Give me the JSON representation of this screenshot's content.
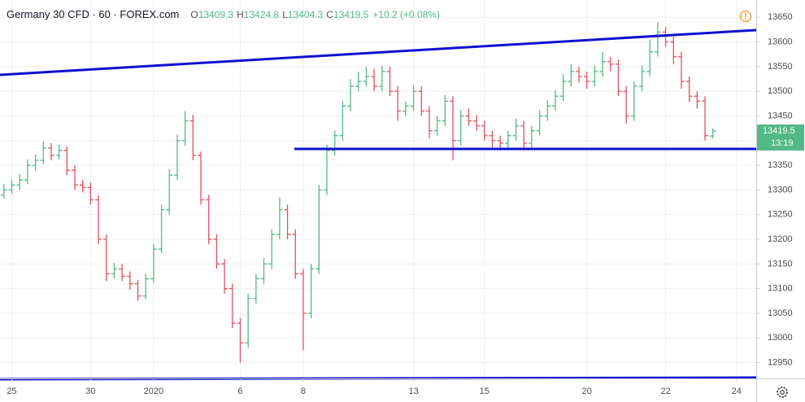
{
  "chart_data": {
    "type": "ohlc",
    "title": "Germany 30 CFD · 60 · FOREX.com",
    "header_labels": [
      "O",
      "H",
      "L",
      "C"
    ],
    "header_values": [
      "13409.3",
      "13424.8",
      "13404.3",
      "13419.5",
      "+10.2 (+0.08%)"
    ],
    "categories": [
      null,
      "25",
      null,
      null,
      null,
      null,
      null,
      null,
      null,
      null,
      null,
      "30",
      null,
      null,
      null,
      null,
      null,
      null,
      null,
      "2020",
      null,
      null,
      null,
      null,
      null,
      null,
      null,
      null,
      null,
      null,
      "6",
      null,
      null,
      null,
      null,
      null,
      null,
      null,
      "8",
      null,
      null,
      null,
      null,
      null,
      null,
      null,
      null,
      null,
      null,
      null,
      null,
      null,
      "13",
      null,
      null,
      null,
      null,
      null,
      null,
      null,
      null,
      "15",
      null,
      null,
      null,
      null,
      null,
      null,
      null,
      null,
      null,
      null,
      null,
      null,
      "20",
      null,
      null,
      null,
      null,
      null,
      null,
      null,
      null,
      null,
      "22",
      null,
      null,
      null,
      null,
      null,
      null,
      null,
      null,
      "24",
      null,
      null
    ],
    "open": [
      13290,
      13300,
      13310,
      13320,
      13350,
      13360,
      13385,
      13370,
      13380,
      13340,
      13310,
      13305,
      13280,
      13200,
      13130,
      13140,
      13125,
      13110,
      13085,
      13120,
      13180,
      13260,
      13330,
      13400,
      13440,
      13370,
      13280,
      13200,
      13150,
      13100,
      13030,
      12990,
      13080,
      13120,
      13150,
      13210,
      13260,
      13210,
      13130,
      13050,
      13140,
      13300,
      13380,
      13410,
      13470,
      13510,
      13520,
      13530,
      13510,
      13540,
      13500,
      13460,
      13470,
      13500,
      13460,
      13420,
      13440,
      13480,
      13400,
      13450,
      13440,
      13430,
      13410,
      13400,
      13395,
      13410,
      13430,
      13395,
      13420,
      13450,
      13470,
      13490,
      13520,
      13540,
      13530,
      13520,
      13540,
      13560,
      13555,
      13500,
      13450,
      13510,
      13540,
      13580,
      13620,
      13600,
      13570,
      13520,
      13490,
      13480,
      13409.3,
      null,
      null,
      null,
      null,
      null
    ],
    "high": [
      13312,
      13320,
      13332,
      13362,
      13372,
      13398,
      13395,
      13392,
      13388,
      13350,
      13320,
      13315,
      13290,
      13210,
      13152,
      13150,
      13135,
      13118,
      13130,
      13190,
      13270,
      13342,
      13412,
      13460,
      13452,
      13378,
      13290,
      13210,
      13160,
      13110,
      13040,
      13090,
      13130,
      13162,
      13220,
      13285,
      13270,
      13220,
      13140,
      13150,
      13310,
      13392,
      13420,
      13480,
      13525,
      13540,
      13550,
      13545,
      13552,
      13550,
      13510,
      13480,
      13512,
      13510,
      13470,
      13450,
      13492,
      13490,
      13462,
      13465,
      13452,
      13440,
      13420,
      13410,
      13420,
      13445,
      13440,
      13430,
      13462,
      13482,
      13502,
      13535,
      13555,
      13550,
      13540,
      13552,
      13580,
      13570,
      13565,
      13510,
      13520,
      13552,
      13605,
      13640,
      13630,
      13610,
      13580,
      13530,
      13500,
      13490,
      13424.8,
      null,
      null,
      null,
      null,
      null
    ],
    "low": [
      13282,
      13292,
      13300,
      13312,
      13340,
      13352,
      13360,
      13362,
      13330,
      13300,
      13295,
      13270,
      13190,
      13115,
      13120,
      13115,
      13098,
      13075,
      13078,
      13112,
      13172,
      13250,
      13320,
      13390,
      13360,
      13270,
      13190,
      13140,
      13090,
      13020,
      12950,
      12980,
      13070,
      13110,
      13140,
      13200,
      13200,
      13120,
      12975,
      13040,
      13130,
      13290,
      13370,
      13400,
      13460,
      13500,
      13510,
      13500,
      13500,
      13490,
      13440,
      13450,
      13460,
      13450,
      13405,
      13410,
      13430,
      13360,
      13390,
      13430,
      13420,
      13400,
      13385,
      13380,
      13385,
      13400,
      13380,
      13385,
      13410,
      13440,
      13460,
      13480,
      13510,
      13518,
      13505,
      13510,
      13530,
      13540,
      13490,
      13435,
      13440,
      13500,
      13530,
      13570,
      13590,
      13555,
      13505,
      13478,
      13465,
      13400,
      13404.3,
      null,
      null,
      null,
      null,
      null
    ],
    "close": [
      13300,
      13310,
      13320,
      13350,
      13360,
      13385,
      13370,
      13380,
      13340,
      13310,
      13305,
      13280,
      13200,
      13130,
      13140,
      13125,
      13110,
      13085,
      13120,
      13180,
      13260,
      13330,
      13400,
      13440,
      13370,
      13280,
      13200,
      13150,
      13100,
      13030,
      12990,
      13080,
      13120,
      13150,
      13210,
      13260,
      13210,
      13130,
      13050,
      13140,
      13300,
      13380,
      13410,
      13470,
      13510,
      13520,
      13530,
      13510,
      13540,
      13500,
      13460,
      13470,
      13500,
      13460,
      13420,
      13440,
      13480,
      13400,
      13450,
      13440,
      13430,
      13410,
      13400,
      13395,
      13410,
      13430,
      13395,
      13420,
      13450,
      13470,
      13490,
      13520,
      13540,
      13530,
      13520,
      13540,
      13560,
      13555,
      13500,
      13450,
      13510,
      13540,
      13580,
      13620,
      13600,
      13570,
      13520,
      13490,
      13480,
      13410,
      13419.5,
      null,
      null,
      null,
      null,
      null
    ],
    "up_color": "#53b987",
    "down_color": "#eb4d5c",
    "ylim": [
      12918,
      13685
    ],
    "yticks": [
      12950,
      13000,
      13050,
      13100,
      13150,
      13200,
      13250,
      13300,
      13350,
      13400,
      13450,
      13500,
      13550,
      13600,
      13650
    ],
    "last_price": {
      "value": 13419.5,
      "label": "13419.5"
    },
    "countdown": "13:19",
    "grid": true
  }
}
